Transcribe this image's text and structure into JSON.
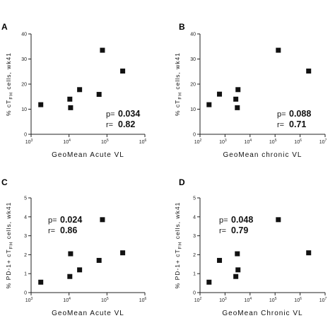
{
  "chart_data": [
    {
      "panel": "A",
      "type": "scatter",
      "xlabel": "GeoMean Acute VL",
      "ylabel": "% cT_FH cells, wk41",
      "xscale": "log",
      "xlim": [
        1000,
        1000000
      ],
      "ylim": [
        0,
        40
      ],
      "yticks": [
        0,
        10,
        20,
        30,
        40
      ],
      "xtick_exponents": [
        3,
        4,
        5,
        6
      ],
      "points": [
        {
          "x": 1800,
          "y": 11.8
        },
        {
          "x": 10500,
          "y": 14.0
        },
        {
          "x": 11000,
          "y": 10.6
        },
        {
          "x": 19000,
          "y": 17.8
        },
        {
          "x": 62000,
          "y": 15.9
        },
        {
          "x": 76000,
          "y": 33.5
        },
        {
          "x": 260000,
          "y": 25.2
        }
      ],
      "stats": {
        "p_label": "p=",
        "p_value": "0.034",
        "r_label": "r=",
        "r_value": "0.82"
      }
    },
    {
      "panel": "B",
      "type": "scatter",
      "xlabel": "GeoMean chronic VL",
      "ylabel": "% cT_FH cells, wk41",
      "xscale": "log",
      "xlim": [
        100,
        10000000
      ],
      "ylim": [
        0,
        40
      ],
      "yticks": [
        0,
        10,
        20,
        30,
        40
      ],
      "xtick_exponents": [
        2,
        3,
        4,
        5,
        6,
        7
      ],
      "points": [
        {
          "x": 230,
          "y": 11.8
        },
        {
          "x": 600,
          "y": 16.0
        },
        {
          "x": 2700,
          "y": 14.0
        },
        {
          "x": 3100,
          "y": 10.6
        },
        {
          "x": 3300,
          "y": 17.8
        },
        {
          "x": 135000,
          "y": 33.5
        },
        {
          "x": 2200000,
          "y": 25.2
        }
      ],
      "stats": {
        "p_label": "p=",
        "p_value": "0.088",
        "r_label": "r=",
        "r_value": "0.71"
      }
    },
    {
      "panel": "C",
      "type": "scatter",
      "xlabel": "GeoMean Acute VL",
      "ylabel": "% PD-1+ cT_FH cells, wk41",
      "xscale": "log",
      "xlim": [
        1000,
        1000000
      ],
      "ylim": [
        0,
        5
      ],
      "yticks": [
        0,
        1,
        2,
        3,
        4,
        5
      ],
      "xtick_exponents": [
        3,
        4,
        5,
        6
      ],
      "points": [
        {
          "x": 1800,
          "y": 0.55
        },
        {
          "x": 10500,
          "y": 0.85
        },
        {
          "x": 11000,
          "y": 2.05
        },
        {
          "x": 19000,
          "y": 1.2
        },
        {
          "x": 62000,
          "y": 1.7
        },
        {
          "x": 76000,
          "y": 3.85
        },
        {
          "x": 260000,
          "y": 2.1
        }
      ],
      "stats": {
        "p_label": "p=",
        "p_value": "0.024",
        "r_label": "r=",
        "r_value": "0.86"
      }
    },
    {
      "panel": "D",
      "type": "scatter",
      "xlabel": "GeoMean Chronic VL",
      "ylabel": "% PD-1+ cT_FH cells, wk41",
      "xscale": "log",
      "xlim": [
        100,
        10000000
      ],
      "ylim": [
        0,
        5
      ],
      "yticks": [
        0,
        1,
        2,
        3,
        4,
        5
      ],
      "xtick_exponents": [
        2,
        3,
        4,
        5,
        6,
        7
      ],
      "points": [
        {
          "x": 230,
          "y": 0.55
        },
        {
          "x": 600,
          "y": 1.7
        },
        {
          "x": 2700,
          "y": 0.85
        },
        {
          "x": 3100,
          "y": 2.05
        },
        {
          "x": 3300,
          "y": 1.2
        },
        {
          "x": 135000,
          "y": 3.85
        },
        {
          "x": 2200000,
          "y": 2.1
        }
      ],
      "stats": {
        "p_label": "p=",
        "p_value": "0.048",
        "r_label": "r=",
        "r_value": "0.79"
      }
    }
  ]
}
